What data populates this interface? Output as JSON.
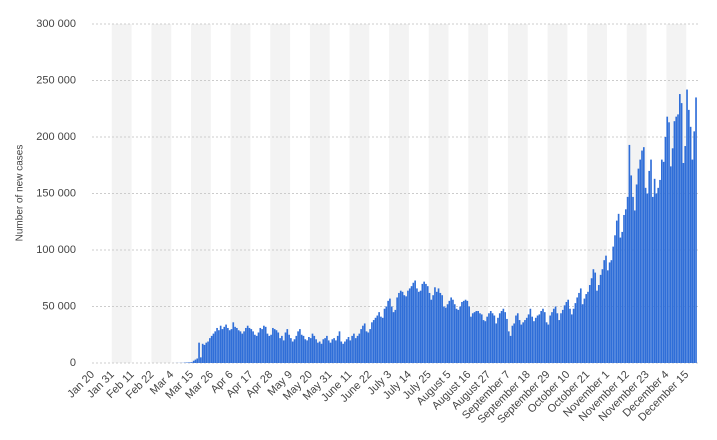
{
  "chart_data": {
    "type": "bar",
    "y_label": "Number of new cases",
    "color": "#2f6ed8",
    "grid": true,
    "ylim": [
      0,
      300000
    ],
    "yticks": [
      0,
      {
        "value": 50000,
        "label": "50 000"
      },
      {
        "value": 100000,
        "label": "100 000"
      },
      {
        "value": 150000,
        "label": "150 000"
      },
      {
        "value": 200000,
        "label": "200 000"
      },
      {
        "value": 250000,
        "label": "250 000"
      },
      {
        "value": 300000,
        "label": "300 000"
      }
    ],
    "categories": [
      "Jan 20",
      null,
      null,
      null,
      null,
      null,
      null,
      null,
      null,
      null,
      null,
      "Jan 31",
      null,
      null,
      null,
      null,
      null,
      null,
      null,
      null,
      null,
      null,
      "Feb 11",
      null,
      null,
      null,
      null,
      null,
      null,
      null,
      null,
      null,
      null,
      "Feb 22",
      null,
      null,
      null,
      null,
      null,
      null,
      null,
      null,
      null,
      null,
      "Mar 4",
      null,
      null,
      null,
      null,
      null,
      null,
      null,
      null,
      null,
      null,
      "Mar 15",
      null,
      null,
      null,
      null,
      null,
      null,
      null,
      null,
      null,
      null,
      "Mar 26",
      null,
      null,
      null,
      null,
      null,
      null,
      null,
      null,
      null,
      null,
      "Apr 6",
      null,
      null,
      null,
      null,
      null,
      null,
      null,
      null,
      null,
      null,
      "Apr 17",
      null,
      null,
      null,
      null,
      null,
      null,
      null,
      null,
      null,
      null,
      "Apr 28",
      null,
      null,
      null,
      null,
      null,
      null,
      null,
      null,
      null,
      null,
      "May 9",
      null,
      null,
      null,
      null,
      null,
      null,
      null,
      null,
      null,
      null,
      "May 20",
      null,
      null,
      null,
      null,
      null,
      null,
      null,
      null,
      null,
      null,
      "May 31",
      null,
      null,
      null,
      null,
      null,
      null,
      null,
      null,
      null,
      null,
      "June 11",
      null,
      null,
      null,
      null,
      null,
      null,
      null,
      null,
      null,
      null,
      "June 22",
      null,
      null,
      null,
      null,
      null,
      null,
      null,
      null,
      null,
      null,
      "July 3",
      null,
      null,
      null,
      null,
      null,
      null,
      null,
      null,
      null,
      null,
      "July 14",
      null,
      null,
      null,
      null,
      null,
      null,
      null,
      null,
      null,
      null,
      "July 25",
      null,
      null,
      null,
      null,
      null,
      null,
      null,
      null,
      null,
      null,
      "August 5",
      null,
      null,
      null,
      null,
      null,
      null,
      null,
      null,
      null,
      null,
      "August 16",
      null,
      null,
      null,
      null,
      null,
      null,
      null,
      null,
      null,
      null,
      "August 27",
      null,
      null,
      null,
      null,
      null,
      null,
      null,
      null,
      null,
      null,
      "September 7",
      null,
      null,
      null,
      null,
      null,
      null,
      null,
      null,
      null,
      null,
      "September 18",
      null,
      null,
      null,
      null,
      null,
      null,
      null,
      null,
      null,
      null,
      "September 29",
      null,
      null,
      null,
      null,
      null,
      null,
      null,
      null,
      null,
      null,
      "October 10",
      null,
      null,
      null,
      null,
      null,
      null,
      null,
      null,
      null,
      null,
      "October 21",
      null,
      null,
      null,
      null,
      null,
      null,
      null,
      null,
      null,
      null,
      "November 1",
      null,
      null,
      null,
      null,
      null,
      null,
      null,
      null,
      null,
      null,
      "November 12",
      null,
      null,
      null,
      null,
      null,
      null,
      null,
      null,
      null,
      null,
      "November 23",
      null,
      null,
      null,
      null,
      null,
      null,
      null,
      null,
      null,
      null,
      "December 4",
      null,
      null,
      null,
      null,
      null,
      null,
      null,
      null,
      null,
      null,
      "December 15",
      null,
      null,
      null,
      null,
      null
    ],
    "values": [
      0,
      0,
      0,
      0,
      0,
      0,
      0,
      0,
      0,
      0,
      0,
      0,
      0,
      0,
      0,
      0,
      0,
      0,
      0,
      0,
      0,
      0,
      0,
      0,
      0,
      0,
      0,
      0,
      0,
      0,
      0,
      0,
      0,
      0,
      0,
      0,
      0,
      0,
      0,
      0,
      0,
      0,
      0,
      0,
      0,
      30,
      50,
      80,
      100,
      120,
      150,
      300,
      400,
      500,
      600,
      700,
      2000,
      3000,
      4000,
      18000,
      5000,
      17000,
      16000,
      18000,
      19000,
      22000,
      24000,
      26000,
      28000,
      31000,
      29000,
      33000,
      30000,
      32000,
      34000,
      31000,
      29000,
      30000,
      36000,
      32000,
      31000,
      29000,
      28000,
      26000,
      28000,
      31000,
      33000,
      31000,
      30000,
      28000,
      25000,
      24000,
      27000,
      31000,
      30000,
      33000,
      32000,
      26000,
      24000,
      25000,
      31000,
      30000,
      29000,
      27000,
      22000,
      24000,
      20000,
      27000,
      30000,
      25000,
      22000,
      19000,
      21000,
      24000,
      28000,
      30000,
      25000,
      24000,
      21000,
      20000,
      23000,
      22000,
      26000,
      24000,
      21000,
      18000,
      19000,
      17000,
      21000,
      22000,
      24000,
      20000,
      18000,
      21000,
      22000,
      20000,
      24000,
      28000,
      19000,
      17000,
      19000,
      21000,
      23000,
      20000,
      24000,
      26000,
      22000,
      24000,
      26000,
      30000,
      33000,
      35000,
      28000,
      27000,
      30000,
      36000,
      38000,
      40000,
      42000,
      45000,
      41000,
      40000,
      48000,
      50000,
      55000,
      57000,
      50000,
      45000,
      47000,
      58000,
      62000,
      64000,
      63000,
      60000,
      59000,
      64000,
      66000,
      68000,
      71000,
      73000,
      66000,
      63000,
      64000,
      70000,
      72000,
      70000,
      68000,
      62000,
      56000,
      60000,
      67000,
      63000,
      66000,
      62000,
      60000,
      50000,
      49000,
      52000,
      55000,
      58000,
      56000,
      52000,
      48000,
      47000,
      50000,
      54000,
      55000,
      56000,
      55000,
      50000,
      41000,
      44000,
      45000,
      46000,
      46000,
      44000,
      43000,
      38000,
      37000,
      41000,
      44000,
      46000,
      44000,
      42000,
      35000,
      40000,
      44000,
      46000,
      48000,
      45000,
      39000,
      28000,
      24000,
      33000,
      35000,
      42000,
      44000,
      38000,
      34000,
      36000,
      38000,
      40000,
      43000,
      48000,
      41000,
      37000,
      40000,
      42000,
      43000,
      46000,
      48000,
      45000,
      36000,
      34000,
      42000,
      45000,
      48000,
      50000,
      44000,
      38000,
      44000,
      47000,
      51000,
      54000,
      56000,
      48000,
      43000,
      48000,
      53000,
      58000,
      62000,
      66000,
      52000,
      57000,
      61000,
      63000,
      69000,
      75000,
      83000,
      80000,
      64000,
      69000,
      78000,
      83000,
      91000,
      95000,
      82000,
      89000,
      91000,
      103000,
      113000,
      126000,
      132000,
      111000,
      116000,
      131000,
      136000,
      147000,
      193000,
      166000,
      147000,
      135000,
      158000,
      172000,
      180000,
      188000,
      191000,
      155000,
      150000,
      170000,
      180000,
      147000,
      163000,
      150000,
      155000,
      162000,
      180000,
      178000,
      200000,
      218000,
      213000,
      174000,
      190000,
      214000,
      218000,
      220000,
      238000,
      230000,
      177000,
      192000,
      242000,
      224000,
      209000,
      180000,
      205000,
      235000
    ]
  }
}
